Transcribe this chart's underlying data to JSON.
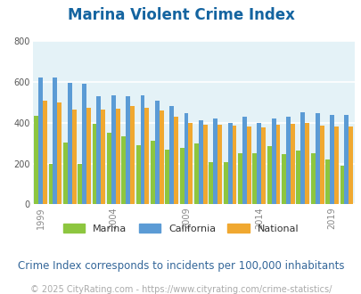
{
  "title": "Marina Violent Crime Index",
  "years": [
    1999,
    2000,
    2001,
    2002,
    2003,
    2004,
    2005,
    2006,
    2007,
    2008,
    2009,
    2010,
    2011,
    2012,
    2013,
    2014,
    2015,
    2016,
    2017,
    2018,
    2019,
    2020
  ],
  "marina": [
    435,
    200,
    305,
    200,
    395,
    350,
    335,
    290,
    310,
    270,
    275,
    300,
    205,
    205,
    250,
    250,
    285,
    245,
    265,
    250,
    220,
    190
  ],
  "california": [
    620,
    620,
    595,
    590,
    530,
    535,
    530,
    535,
    510,
    480,
    445,
    410,
    420,
    400,
    430,
    400,
    420,
    430,
    450,
    445,
    440,
    440
  ],
  "national": [
    510,
    500,
    465,
    475,
    465,
    470,
    480,
    475,
    460,
    430,
    400,
    390,
    390,
    385,
    380,
    375,
    390,
    395,
    400,
    385,
    380,
    380
  ],
  "bar_colors": {
    "marina": "#8dc63f",
    "california": "#5b9bd5",
    "national": "#f0a830"
  },
  "ylim": [
    0,
    800
  ],
  "yticks": [
    0,
    200,
    400,
    600,
    800
  ],
  "xtick_years": [
    1999,
    2004,
    2009,
    2014,
    2019
  ],
  "plot_bg_color": "#e4f2f7",
  "fig_bg_color": "#ffffff",
  "grid_color": "#ffffff",
  "title_color": "#1464a0",
  "subtitle": "Crime Index corresponds to incidents per 100,000 inhabitants",
  "subtitle_color": "#336699",
  "footer": "© 2025 CityRating.com - https://www.cityrating.com/crime-statistics/",
  "footer_color": "#aaaaaa",
  "legend_labels": [
    "Marina",
    "California",
    "National"
  ],
  "title_fontsize": 12,
  "subtitle_fontsize": 8.5,
  "footer_fontsize": 7
}
